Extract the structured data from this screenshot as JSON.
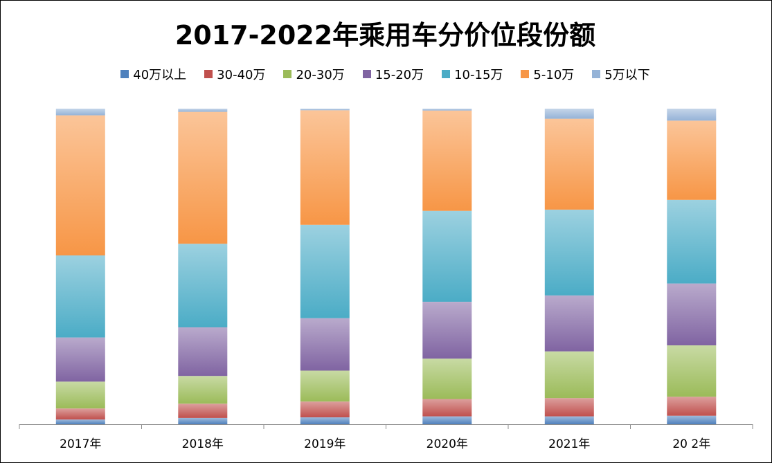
{
  "chart_data": {
    "type": "bar",
    "stacked": true,
    "normalized": true,
    "title": "2017-2022年乘用车分价位段份额",
    "legend_position": "top",
    "categories": [
      "2017年",
      "2018年",
      "2019年",
      "2020年",
      "2021年",
      "20 2年"
    ],
    "ylim": [
      0,
      100
    ],
    "grid": false,
    "series": [
      {
        "name": "40万以上",
        "color": "#4f81bd",
        "values": [
          1.5,
          2.0,
          2.2,
          2.5,
          2.5,
          2.7
        ]
      },
      {
        "name": "30-40万",
        "color": "#c0504d",
        "values": [
          3.5,
          4.5,
          5.0,
          5.5,
          5.8,
          6.0
        ]
      },
      {
        "name": "20-30万",
        "color": "#9bbb59",
        "values": [
          8.5,
          8.8,
          9.8,
          12.8,
          14.8,
          16.3
        ]
      },
      {
        "name": "15-20万",
        "color": "#8064a2",
        "values": [
          14.0,
          15.4,
          16.6,
          18.0,
          17.7,
          19.6
        ]
      },
      {
        "name": "10-15万",
        "color": "#4bacc6",
        "values": [
          26.0,
          26.5,
          29.6,
          28.8,
          27.2,
          26.5
        ]
      },
      {
        "name": "5-10万",
        "color": "#f79646",
        "values": [
          44.4,
          41.8,
          36.3,
          31.8,
          28.8,
          25.1
        ]
      },
      {
        "name": "5万以下",
        "color": "#95b3d7",
        "values": [
          2.1,
          1.0,
          0.5,
          0.6,
          3.2,
          3.8
        ]
      }
    ]
  }
}
